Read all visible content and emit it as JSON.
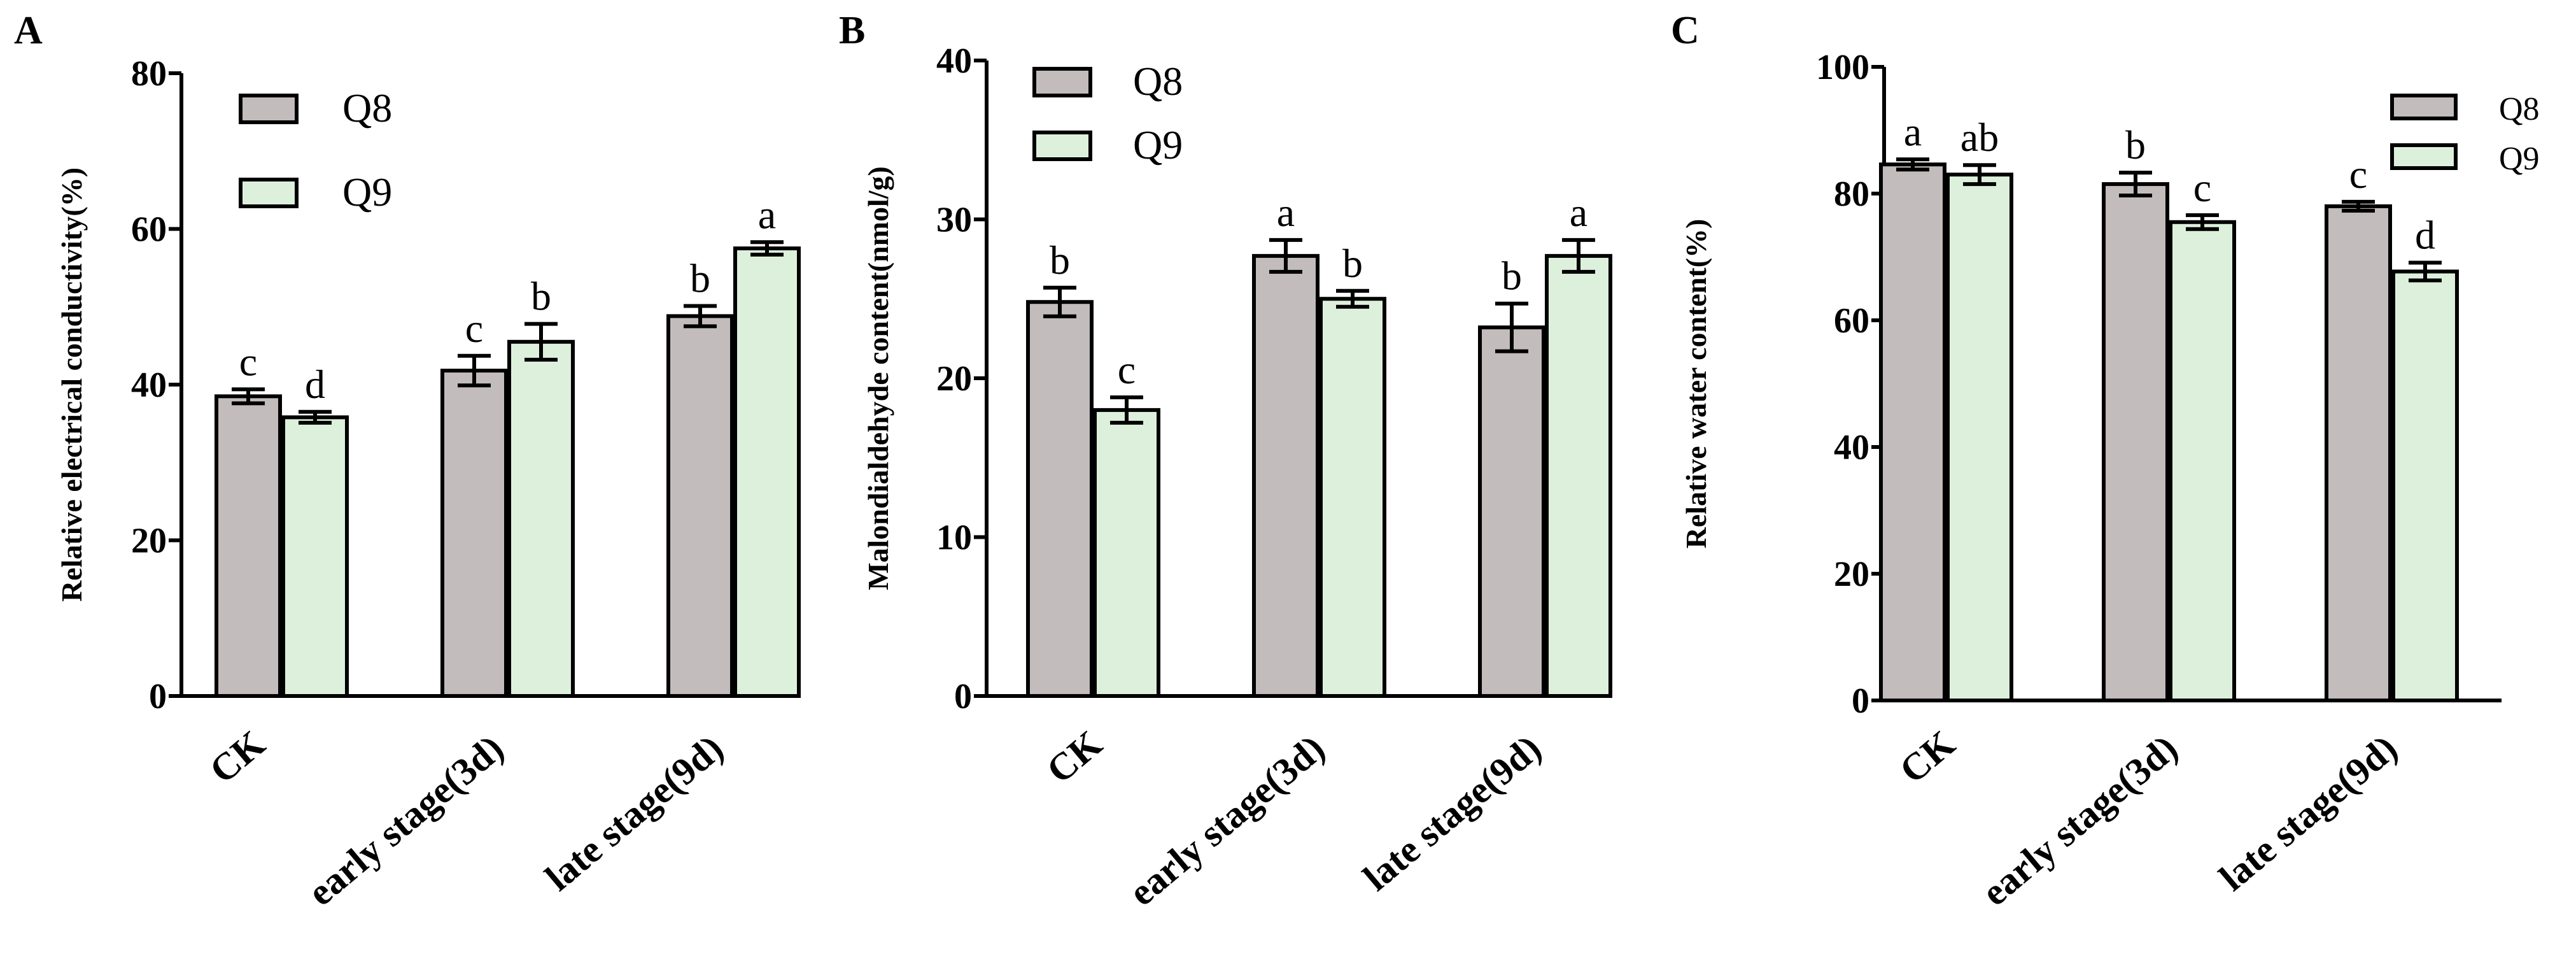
{
  "chart_data": [
    {
      "type": "bar",
      "panel_label": "A",
      "ylabel": "Relative electrical conductivity(%)",
      "xlabel": "",
      "ylim": [
        0,
        80
      ],
      "yticks": [
        0,
        20,
        40,
        60,
        80
      ],
      "categories": [
        "CK",
        "early stage(3d)",
        "late stage(9d)"
      ],
      "series": [
        {
          "name": "Q8",
          "color": "#c3bcbc",
          "values": [
            38.5,
            41.8,
            48.8
          ],
          "errors": [
            0.9,
            1.9,
            1.3
          ],
          "labels": [
            "c",
            "c",
            "b"
          ]
        },
        {
          "name": "Q9",
          "color": "#ddf0dc",
          "values": [
            35.8,
            45.5,
            57.5
          ],
          "errors": [
            0.7,
            2.3,
            0.8
          ],
          "labels": [
            "d",
            "b",
            "a"
          ]
        }
      ],
      "legend": "top-left"
    },
    {
      "type": "bar",
      "panel_label": "B",
      "ylabel": "Malondialdehyde content(nmol/g)",
      "xlabel": "",
      "ylim": [
        0,
        40
      ],
      "yticks": [
        0,
        10,
        20,
        30,
        40
      ],
      "categories": [
        "CK",
        "early stage(3d)",
        "late stage(9d)"
      ],
      "series": [
        {
          "name": "Q8",
          "color": "#c3bcbc",
          "values": [
            24.8,
            27.7,
            23.2
          ],
          "errors": [
            0.9,
            1.0,
            1.5
          ],
          "labels": [
            "b",
            "a",
            "b"
          ]
        },
        {
          "name": "Q9",
          "color": "#ddf0dc",
          "values": [
            18.0,
            25.0,
            27.7
          ],
          "errors": [
            0.8,
            0.5,
            1.0
          ],
          "labels": [
            "c",
            "b",
            "a"
          ]
        }
      ],
      "legend": "top-left"
    },
    {
      "type": "bar",
      "panel_label": "C",
      "ylabel": "Relative water content(%)",
      "xlabel": "",
      "ylim": [
        0,
        100
      ],
      "yticks": [
        0,
        20,
        40,
        60,
        80,
        100
      ],
      "categories": [
        "CK",
        "early stage(3d)",
        "late stage(9d)"
      ],
      "series": [
        {
          "name": "Q8",
          "color": "#c3bcbc",
          "values": [
            84.6,
            81.5,
            78.0
          ],
          "errors": [
            0.8,
            1.8,
            0.7
          ],
          "labels": [
            "a",
            "b",
            "c"
          ]
        },
        {
          "name": "Q9",
          "color": "#ddf0dc",
          "values": [
            83.0,
            75.5,
            67.7
          ],
          "errors": [
            1.5,
            1.1,
            1.4
          ],
          "labels": [
            "ab",
            "c",
            "d"
          ]
        }
      ],
      "legend": "top-right"
    }
  ]
}
